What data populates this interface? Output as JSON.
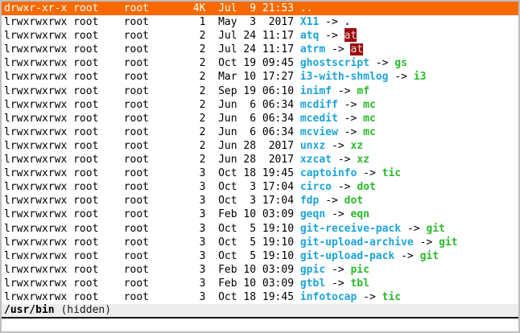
{
  "colors": {
    "selection_bg": "#f86a00",
    "selection_fg": "#ffffff",
    "link_name": "#1ca4d8",
    "target_exec": "#2abb2a",
    "target_setuid_bg": "#9c0a0a",
    "target_setuid_fg": "#e8dcdc",
    "target_dir": "#1a1ace",
    "status_bg": "#ededed",
    "text": "#000000"
  },
  "arrow": "->",
  "files": [
    {
      "perms": "drwxr-xr-x",
      "owner": "root",
      "group": "root",
      "size": "4K",
      "date": "Jul  9 21:53",
      "name": "..",
      "selected": true
    },
    {
      "perms": "lrwxrwxrwx",
      "owner": "root",
      "group": "root",
      "size": "1",
      "date": "May  3  2017",
      "name": "X11",
      "target": ".",
      "target_style": "dir"
    },
    {
      "perms": "lrwxrwxrwx",
      "owner": "root",
      "group": "root",
      "size": "2",
      "date": "Jul 24 11:17",
      "name": "atq",
      "target": "at",
      "target_style": "setuid"
    },
    {
      "perms": "lrwxrwxrwx",
      "owner": "root",
      "group": "root",
      "size": "2",
      "date": "Jul 24 11:17",
      "name": "atrm",
      "target": "at",
      "target_style": "setuid"
    },
    {
      "perms": "lrwxrwxrwx",
      "owner": "root",
      "group": "root",
      "size": "2",
      "date": "Oct 19 09:45",
      "name": "ghostscript",
      "target": "gs",
      "target_style": "exec"
    },
    {
      "perms": "lrwxrwxrwx",
      "owner": "root",
      "group": "root",
      "size": "2",
      "date": "Mar 10 17:27",
      "name": "i3-with-shmlog",
      "target": "i3",
      "target_style": "exec"
    },
    {
      "perms": "lrwxrwxrwx",
      "owner": "root",
      "group": "root",
      "size": "2",
      "date": "Sep 19 06:10",
      "name": "inimf",
      "target": "mf",
      "target_style": "exec"
    },
    {
      "perms": "lrwxrwxrwx",
      "owner": "root",
      "group": "root",
      "size": "2",
      "date": "Jun  6 06:34",
      "name": "mcdiff",
      "target": "mc",
      "target_style": "exec"
    },
    {
      "perms": "lrwxrwxrwx",
      "owner": "root",
      "group": "root",
      "size": "2",
      "date": "Jun  6 06:34",
      "name": "mcedit",
      "target": "mc",
      "target_style": "exec"
    },
    {
      "perms": "lrwxrwxrwx",
      "owner": "root",
      "group": "root",
      "size": "2",
      "date": "Jun  6 06:34",
      "name": "mcview",
      "target": "mc",
      "target_style": "exec"
    },
    {
      "perms": "lrwxrwxrwx",
      "owner": "root",
      "group": "root",
      "size": "2",
      "date": "Jun 28  2017",
      "name": "unxz",
      "target": "xz",
      "target_style": "exec"
    },
    {
      "perms": "lrwxrwxrwx",
      "owner": "root",
      "group": "root",
      "size": "2",
      "date": "Jun 28  2017",
      "name": "xzcat",
      "target": "xz",
      "target_style": "exec"
    },
    {
      "perms": "lrwxrwxrwx",
      "owner": "root",
      "group": "root",
      "size": "3",
      "date": "Oct 18 19:45",
      "name": "captoinfo",
      "target": "tic",
      "target_style": "exec"
    },
    {
      "perms": "lrwxrwxrwx",
      "owner": "root",
      "group": "root",
      "size": "3",
      "date": "Oct  3 17:04",
      "name": "circo",
      "target": "dot",
      "target_style": "exec"
    },
    {
      "perms": "lrwxrwxrwx",
      "owner": "root",
      "group": "root",
      "size": "3",
      "date": "Oct  3 17:04",
      "name": "fdp",
      "target": "dot",
      "target_style": "exec"
    },
    {
      "perms": "lrwxrwxrwx",
      "owner": "root",
      "group": "root",
      "size": "3",
      "date": "Feb 10 03:09",
      "name": "geqn",
      "target": "eqn",
      "target_style": "exec"
    },
    {
      "perms": "lrwxrwxrwx",
      "owner": "root",
      "group": "root",
      "size": "3",
      "date": "Oct  5 19:10",
      "name": "git-receive-pack",
      "target": "git",
      "target_style": "exec"
    },
    {
      "perms": "lrwxrwxrwx",
      "owner": "root",
      "group": "root",
      "size": "3",
      "date": "Oct  5 19:10",
      "name": "git-upload-archive",
      "target": "git",
      "target_style": "exec"
    },
    {
      "perms": "lrwxrwxrwx",
      "owner": "root",
      "group": "root",
      "size": "3",
      "date": "Oct  5 19:10",
      "name": "git-upload-pack",
      "target": "git",
      "target_style": "exec"
    },
    {
      "perms": "lrwxrwxrwx",
      "owner": "root",
      "group": "root",
      "size": "3",
      "date": "Feb 10 03:09",
      "name": "gpic",
      "target": "pic",
      "target_style": "exec"
    },
    {
      "perms": "lrwxrwxrwx",
      "owner": "root",
      "group": "root",
      "size": "3",
      "date": "Feb 10 03:09",
      "name": "gtbl",
      "target": "tbl",
      "target_style": "exec"
    },
    {
      "perms": "lrwxrwxrwx",
      "owner": "root",
      "group": "root",
      "size": "3",
      "date": "Oct 18 19:45",
      "name": "infotocap",
      "target": "tic",
      "target_style": "exec"
    }
  ],
  "status": {
    "path": "/usr/bin",
    "suffix": " (hidden)"
  }
}
